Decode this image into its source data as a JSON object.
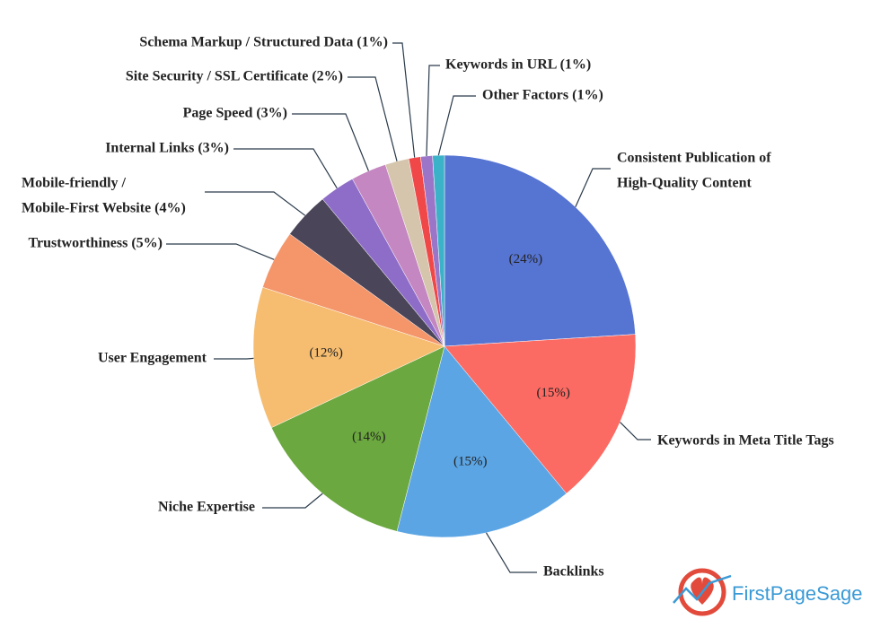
{
  "chart_data": {
    "type": "pie",
    "categories": [
      [
        "Consistent Publication of",
        "High-Quality Content"
      ],
      [
        "Keywords in Meta Title Tags"
      ],
      [
        "Backlinks"
      ],
      [
        "Niche Expertise"
      ],
      [
        "User Engagement"
      ],
      [
        "Trustworthiness (5%)"
      ],
      [
        "Mobile-friendly /",
        "Mobile-First Website (4%)"
      ],
      [
        "Internal Links (3%)"
      ],
      [
        "Page Speed (3%)"
      ],
      [
        "Site Security / SSL Certificate (2%)"
      ],
      [
        "Schema Markup / Structured Data (1%)"
      ],
      [
        "Keywords in URL (1%)"
      ],
      [
        "Other Factors (1%)"
      ]
    ],
    "values": [
      24,
      15,
      15,
      14,
      12,
      5,
      4,
      3,
      3,
      2,
      1,
      1,
      1
    ],
    "value_labels": [
      "(24%)",
      "(15%)",
      "(15%)",
      "(14%)",
      "(12%)",
      null,
      null,
      null,
      null,
      null,
      null,
      null,
      null
    ],
    "colors": [
      "#5674d2",
      "#fc6b63",
      "#5ca5e4",
      "#6ba83f",
      "#f6bd70",
      "#f4956a",
      "#4a4558",
      "#8e6dc8",
      "#c487c1",
      "#d6c5ad",
      "#f04848",
      "#9b76c8",
      "#3cb2c8"
    ]
  },
  "logo": "FirstPageSage"
}
